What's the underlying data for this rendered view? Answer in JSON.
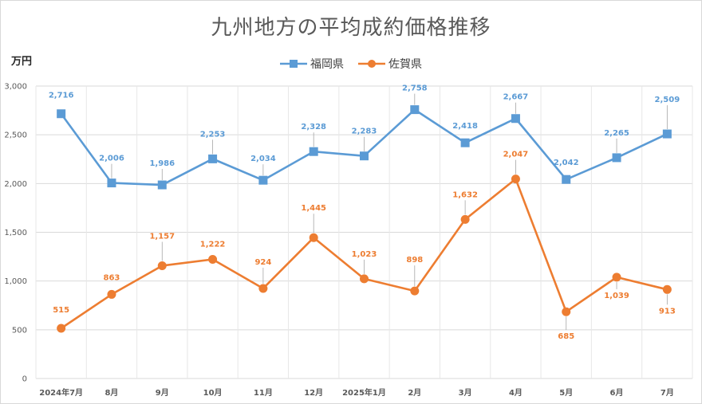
{
  "chart_data": {
    "type": "line",
    "title": "九州地方の平均成約価格推移",
    "ylabel": "万円",
    "xlabel": "",
    "ylim": [
      0,
      3000
    ],
    "yticks": [
      "0",
      "500",
      "1,000",
      "1,500",
      "2,000",
      "2,500",
      "3,000"
    ],
    "grid": true,
    "legend_position": "top",
    "categories": [
      "2024年7月",
      "8月",
      "9月",
      "10月",
      "11月",
      "12月",
      "2025年1月",
      "2月",
      "3月",
      "4月",
      "5月",
      "6月",
      "7月"
    ],
    "series": [
      {
        "name": "福岡県",
        "color": "#5b9bd5",
        "marker": "square",
        "values": [
          2716,
          2006,
          1986,
          2253,
          2034,
          2328,
          2283,
          2758,
          2418,
          2667,
          2042,
          2265,
          2509
        ],
        "labels": [
          "2,716",
          "2,006",
          "1,986",
          "2,253",
          "2,034",
          "2,328",
          "2,283",
          "2,758",
          "2,418",
          "2,667",
          "2,042",
          "2,265",
          "2,509"
        ]
      },
      {
        "name": "佐賀県",
        "color": "#ed7d31",
        "marker": "circle",
        "values": [
          515,
          863,
          1157,
          1222,
          924,
          1445,
          1023,
          898,
          1632,
          2047,
          685,
          1039,
          913
        ],
        "labels": [
          "515",
          "863",
          "1,157",
          "1,222",
          "924",
          "1,445",
          "1,023",
          "898",
          "1,632",
          "2,047",
          "685",
          "1,039",
          "913"
        ]
      }
    ]
  }
}
